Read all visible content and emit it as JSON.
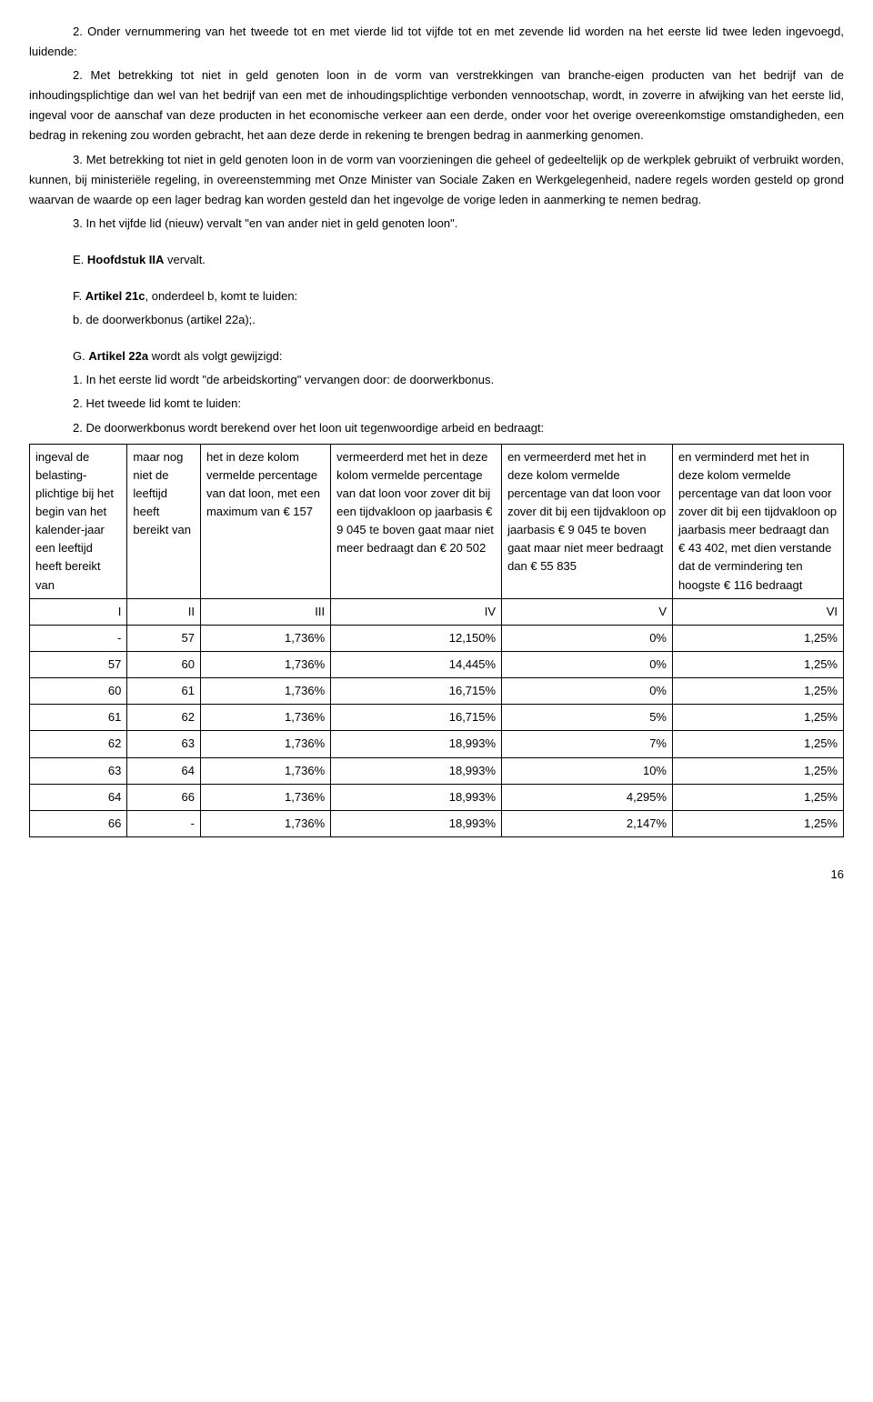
{
  "para1": "2. Onder vernummering van het tweede tot en met vierde lid tot vijfde tot en met zevende lid worden na het eerste lid twee leden ingevoegd, luidende:",
  "para2": "2. Met betrekking tot niet in geld genoten loon in de vorm van verstrekkingen van branche-eigen producten van het bedrijf van de inhoudingsplichtige dan wel van het bedrijf van een met de inhoudingsplichtige verbonden vennootschap, wordt, in zoverre in afwijking van het eerste lid, ingeval voor de aanschaf van deze producten in het economische verkeer aan een derde, onder voor het overige overeenkomstige omstandigheden, een bedrag in rekening zou worden gebracht, het aan deze derde in rekening te brengen bedrag in aanmerking genomen.",
  "para3": "3. Met betrekking tot niet in geld genoten loon in de vorm van voorzieningen die geheel of gedeeltelijk op de werkplek gebruikt of verbruikt worden, kunnen, bij ministeriële regeling, in overeenstemming met Onze Minister van Sociale Zaken en Werkgelegenheid, nadere regels worden gesteld op grond waarvan de waarde op een lager bedrag kan worden gesteld dan het ingevolge de vorige leden in aanmerking te nemen bedrag.",
  "para4": "3. In het vijfde lid (nieuw) vervalt \"en van ander niet in geld genoten loon\".",
  "secE_prefix": "E. ",
  "secE_bold": "Hoofdstuk IIA",
  "secE_suffix": " vervalt.",
  "secF_prefix": "F. ",
  "secF_bold": "Artikel 21c",
  "secF_suffix": ", onderdeel b, komt te luiden:",
  "secF_line2": "b. de doorwerkbonus (artikel 22a);.",
  "secG_prefix": "G. ",
  "secG_bold": "Artikel 22a",
  "secG_suffix": " wordt als volgt gewijzigd:",
  "secG_line1": "1. In het eerste lid wordt \"de arbeidskorting\" vervangen door: de doorwerkbonus.",
  "secG_line2": "2. Het tweede lid komt te luiden:",
  "secG_line3": "2. De doorwerkbonus wordt berekend over het loon uit tegenwoordige arbeid en bedraagt:",
  "table": {
    "headers": [
      "ingeval de belasting-plichtige bij het begin van het kalender-jaar een leeftijd heeft bereikt van",
      "maar nog niet de leeftijd heeft bereikt van",
      "het in deze kolom vermelde percentage van dat loon, met een maximum van € 157",
      "vermeerderd met het in deze kolom vermelde percentage van dat loon voor zover dit bij een tijdvakloon op jaarbasis € 9 045 te boven gaat maar niet meer bedraagt dan € 20 502",
      "en vermeerderd met het in deze kolom vermelde percentage van dat loon voor zover dit bij een tijdvakloon op jaarbasis € 9 045 te boven gaat maar niet meer bedraagt dan € 55 835",
      "en verminderd met het in deze kolom vermelde percentage van dat loon voor zover dit bij een tijdvakloon op jaarbasis meer bedraagt dan € 43 402, met dien verstande dat de vermindering ten hoogste € 116 bedraagt"
    ],
    "roman": [
      "I",
      "II",
      "III",
      "IV",
      "V",
      "VI"
    ],
    "rows": [
      [
        "-",
        "57",
        "1,736%",
        "12,150%",
        "0%",
        "1,25%"
      ],
      [
        "57",
        "60",
        "1,736%",
        "14,445%",
        "0%",
        "1,25%"
      ],
      [
        "60",
        "61",
        "1,736%",
        "16,715%",
        "0%",
        "1,25%"
      ],
      [
        "61",
        "62",
        "1,736%",
        "16,715%",
        "5%",
        "1,25%"
      ],
      [
        "62",
        "63",
        "1,736%",
        "18,993%",
        "7%",
        "1,25%"
      ],
      [
        "63",
        "64",
        "1,736%",
        "18,993%",
        "10%",
        "1,25%"
      ],
      [
        "64",
        "66",
        "1,736%",
        "18,993%",
        "4,295%",
        "1,25%"
      ],
      [
        "66",
        "-",
        "1,736%",
        "18,993%",
        "2,147%",
        "1,25%"
      ]
    ],
    "col_widths": [
      "12%",
      "9%",
      "16%",
      "21%",
      "21%",
      "21%"
    ]
  },
  "page_number": "16"
}
